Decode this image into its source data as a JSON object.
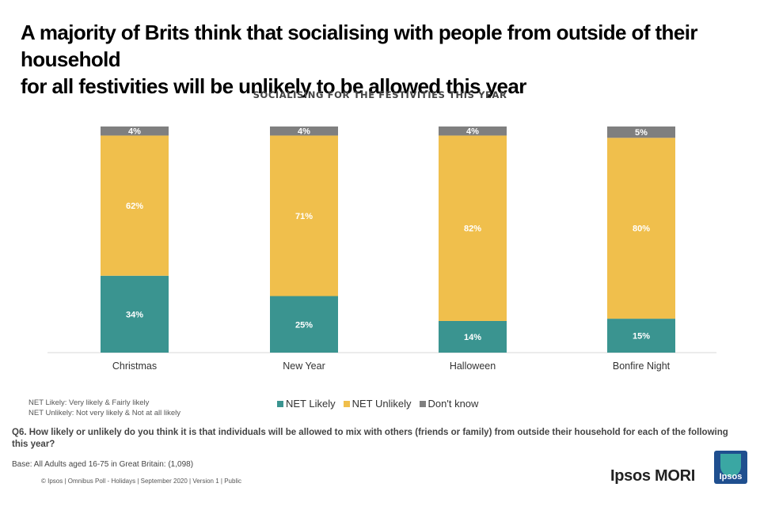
{
  "title_lines": [
    "A majority of Brits think that socialising with people from outside of their household",
    "for all festivities will be unlikely to be allowed this year"
  ],
  "chart_data": {
    "type": "bar",
    "stacked": true,
    "title": "SOCIALISING FOR THE FESTIVITIES THIS YEAR",
    "categories": [
      "Christmas",
      "New Year",
      "Halloween",
      "Bonfire Night"
    ],
    "series": [
      {
        "name": "NET Likely",
        "values": [
          34,
          25,
          14,
          15
        ],
        "color": "#3a9490"
      },
      {
        "name": "NET Unlikely",
        "values": [
          62,
          71,
          82,
          80
        ],
        "color": "#f0bf4c"
      },
      {
        "name": "Don't know",
        "values": [
          4,
          4,
          4,
          5
        ],
        "color": "#7f7f7f"
      }
    ],
    "value_suffix": "%",
    "ylim": [
      0,
      100
    ],
    "legend_position": "bottom"
  },
  "legend": [
    "NET Likely",
    "NET Unlikely",
    "Don't know"
  ],
  "notes": [
    "NET Likely: Very likely & Fairly likely",
    "NET Unlikely: Not very likely & Not at all likely"
  ],
  "question": "Q6. How likely or unlikely do you think it is that individuals will be allowed to mix with others (friends or family) from outside their household for each of the following this year?",
  "base": "Base: All Adults aged 16-75 in Great Britain: (1,098)",
  "footer": "© Ipsos | Omnibus Poll - Holidays  | September 2020 | Version 1 | Public",
  "brand": "Ipsos MORI",
  "logo_text": "Ipsos",
  "colors": {
    "logo_bg": "#1f4f8f",
    "logo_accent": "#3aa7a3"
  }
}
